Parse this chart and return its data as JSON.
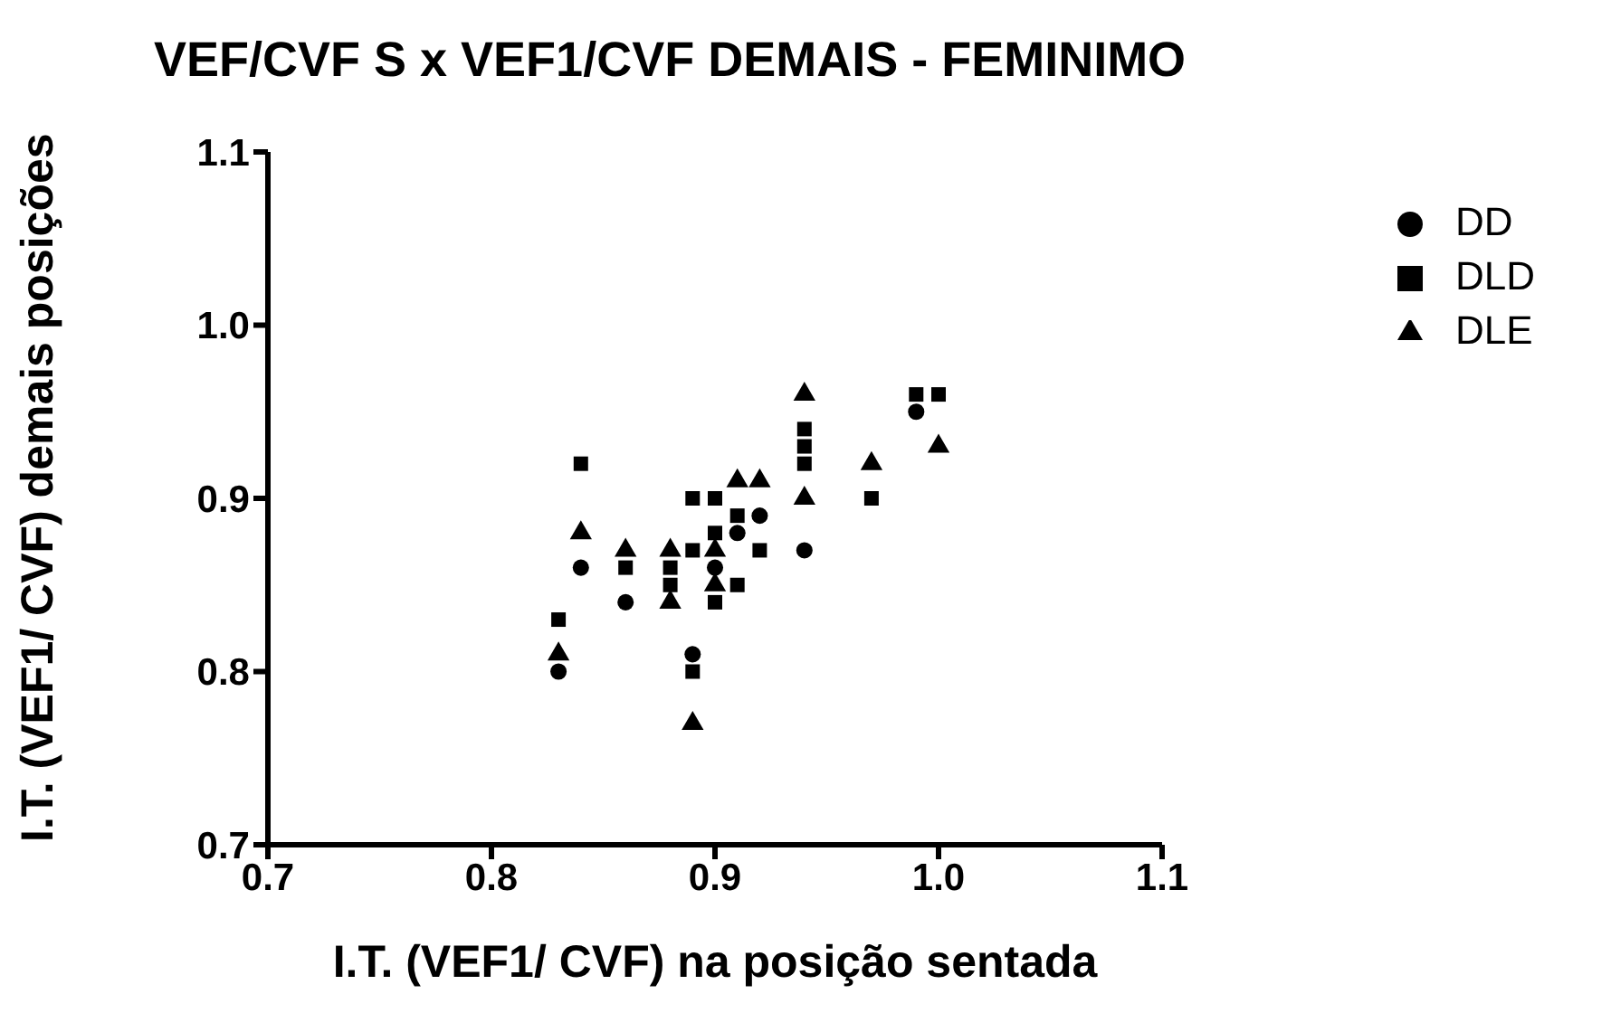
{
  "chart_data": {
    "type": "scatter",
    "title": "VEF/CVF S x VEF1/CVF DEMAIS - FEMINIMO",
    "xlabel": "I.T. (VEF1/ CVF) na posição sentada",
    "ylabel": "I.T. (VEF1/ CVF) demais posições",
    "xlim": [
      0.7,
      1.1
    ],
    "xticks": [
      0.7,
      0.8,
      0.9,
      {
        "value": 1.0,
        "label": "1.0"
      },
      1.1
    ],
    "ylim": [
      0.7,
      1.1
    ],
    "yticks": [
      0.7,
      0.8,
      0.9,
      {
        "value": 1.0,
        "label": "1.0"
      },
      1.1
    ],
    "legend": "top right",
    "series": [
      {
        "name": "DD",
        "color": "#000000",
        "marker": "circle",
        "x": [
          0.83,
          0.84,
          0.86,
          0.89,
          0.9,
          0.91,
          0.92,
          0.94,
          0.99
        ],
        "values": [
          0.8,
          0.86,
          0.84,
          0.81,
          0.86,
          0.88,
          0.89,
          0.87,
          0.95
        ]
      },
      {
        "name": "DLD",
        "color": "#000000",
        "marker": "square",
        "x": [
          0.83,
          0.84,
          0.86,
          0.88,
          0.88,
          0.89,
          0.89,
          0.89,
          0.9,
          0.9,
          0.9,
          0.91,
          0.91,
          0.92,
          0.94,
          0.94,
          0.94,
          0.97,
          0.99,
          1.0
        ],
        "values": [
          0.83,
          0.92,
          0.86,
          0.85,
          0.86,
          0.9,
          0.87,
          0.8,
          0.84,
          0.88,
          0.9,
          0.85,
          0.89,
          0.87,
          0.92,
          0.93,
          0.94,
          0.9,
          0.96,
          0.96
        ]
      },
      {
        "name": "DLE",
        "color": "#000000",
        "marker": "triangle",
        "x": [
          0.83,
          0.84,
          0.86,
          0.88,
          0.88,
          0.89,
          0.9,
          0.9,
          0.91,
          0.92,
          0.94,
          0.94,
          0.97,
          1.0
        ],
        "values": [
          0.81,
          0.88,
          0.87,
          0.87,
          0.84,
          0.77,
          0.87,
          0.85,
          0.91,
          0.91,
          0.96,
          0.9,
          0.92,
          0.93
        ]
      }
    ]
  }
}
